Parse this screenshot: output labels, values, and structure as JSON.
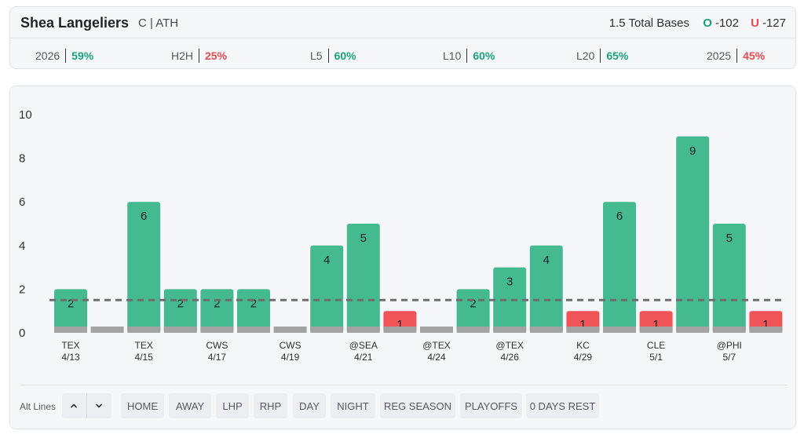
{
  "player": {
    "name": "Shea Langeliers",
    "position_team": "C | ATH"
  },
  "prop": {
    "line_label": "1.5 Total Bases",
    "over_symbol": "O",
    "over_odds": "-102",
    "under_symbol": "U",
    "under_odds": "-127"
  },
  "hit_rates": [
    {
      "label": "2026",
      "value": "59%",
      "status": "good"
    },
    {
      "label": "H2H",
      "value": "25%",
      "status": "bad"
    },
    {
      "label": "L5",
      "value": "60%",
      "status": "good"
    },
    {
      "label": "L10",
      "value": "60%",
      "status": "good"
    },
    {
      "label": "L20",
      "value": "65%",
      "status": "good"
    },
    {
      "label": "2025",
      "value": "45%",
      "status": "bad"
    }
  ],
  "colors": {
    "over": "#45b990",
    "under": "#ef5459",
    "zero": "#a3a3a3",
    "line": "#6e6e6e"
  },
  "chart_data": {
    "type": "bar",
    "line": 1.5,
    "ylim": [
      0,
      10
    ],
    "y_ticks": [
      0,
      2,
      4,
      6,
      8,
      10
    ],
    "x_labels": [
      {
        "opponent": "TEX",
        "date": "4/13"
      },
      {
        "opponent": "TEX",
        "date": "4/15"
      },
      {
        "opponent": "CWS",
        "date": "4/17"
      },
      {
        "opponent": "CWS",
        "date": "4/19"
      },
      {
        "opponent": "@SEA",
        "date": "4/21"
      },
      {
        "opponent": "@TEX",
        "date": "4/24"
      },
      {
        "opponent": "@TEX",
        "date": "4/26"
      },
      {
        "opponent": "KC",
        "date": "4/29"
      },
      {
        "opponent": "CLE",
        "date": "5/1"
      },
      {
        "opponent": "@PHI",
        "date": "5/7"
      }
    ],
    "values": [
      2,
      0,
      6,
      2,
      2,
      2,
      0,
      4,
      5,
      1,
      0,
      2,
      3,
      4,
      1,
      6,
      1,
      9,
      5,
      1
    ]
  },
  "controls": {
    "alt_lines_label": "Alt Lines",
    "filters": [
      "HOME",
      "AWAY",
      "LHP",
      "RHP",
      "DAY",
      "NIGHT",
      "REG SEASON",
      "PLAYOFFS",
      "0 DAYS REST"
    ]
  }
}
